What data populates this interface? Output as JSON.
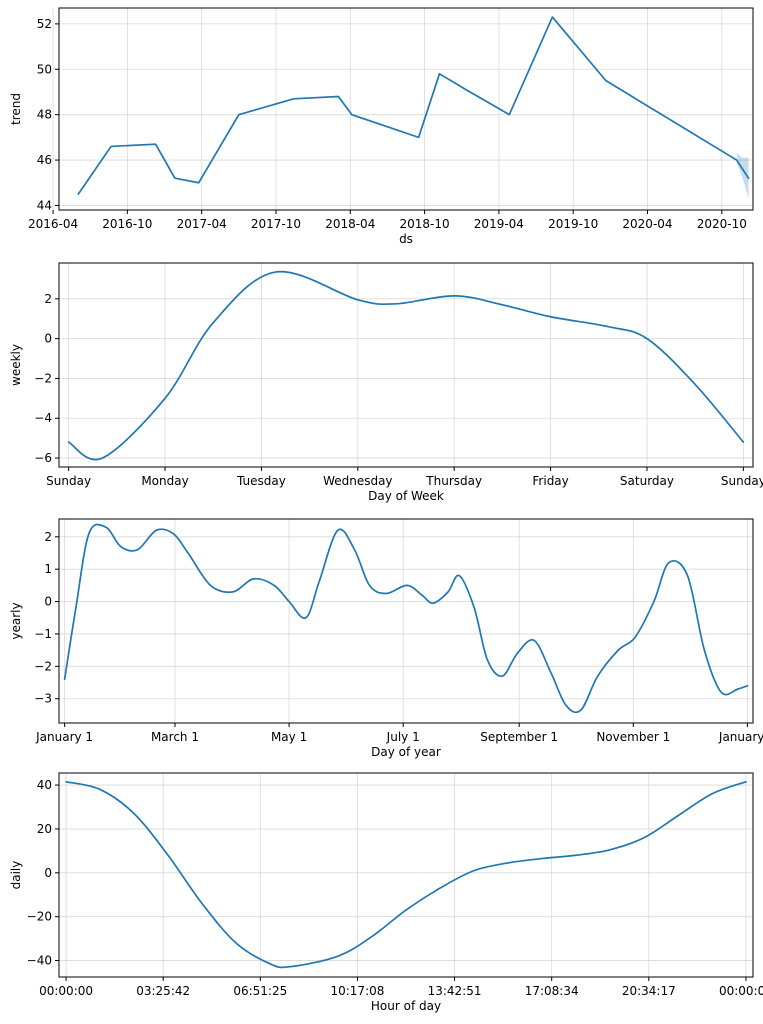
{
  "colors": {
    "line": "#1f77b4",
    "band": "#1f77b4",
    "grid": "#d9d9d9"
  },
  "chart_data": [
    {
      "type": "line",
      "name": "trend-panel",
      "xlabel": "ds",
      "ylabel": "trend",
      "xlim": [
        2016.29,
        2020.96
      ],
      "ylim": [
        43.8,
        52.7
      ],
      "xticks": [
        {
          "v": 2016.25,
          "label": "2016-04"
        },
        {
          "v": 2016.75,
          "label": "2016-10"
        },
        {
          "v": 2017.25,
          "label": "2017-04"
        },
        {
          "v": 2017.75,
          "label": "2017-10"
        },
        {
          "v": 2018.25,
          "label": "2018-04"
        },
        {
          "v": 2018.75,
          "label": "2018-10"
        },
        {
          "v": 2019.25,
          "label": "2019-04"
        },
        {
          "v": 2019.75,
          "label": "2019-10"
        },
        {
          "v": 2020.25,
          "label": "2020-04"
        },
        {
          "v": 2020.75,
          "label": "2020-10"
        }
      ],
      "yticks": [
        {
          "v": 44,
          "label": "44"
        },
        {
          "v": 46,
          "label": "46"
        },
        {
          "v": 48,
          "label": "48"
        },
        {
          "v": 50,
          "label": "50"
        },
        {
          "v": 52,
          "label": "52"
        }
      ],
      "x": [
        2016.42,
        2016.64,
        2016.94,
        2017.07,
        2017.23,
        2017.5,
        2017.87,
        2018.17,
        2018.26,
        2018.71,
        2018.85,
        2019.03,
        2019.32,
        2019.61,
        2019.97,
        2020.85,
        2020.93
      ],
      "y": [
        44.5,
        46.6,
        46.7,
        45.2,
        45.0,
        48.0,
        48.7,
        48.8,
        48.0,
        47.0,
        49.8,
        49.1,
        48.0,
        52.3,
        49.5,
        46.0,
        45.2
      ],
      "band": {
        "x": [
          2020.85,
          2020.89,
          2020.93
        ],
        "upper": [
          46.3,
          46.1,
          46.1
        ],
        "lower": [
          45.9,
          45.2,
          44.3
        ]
      }
    },
    {
      "type": "line",
      "name": "weekly-panel",
      "xlabel": "Day of Week",
      "ylabel": "weekly",
      "xlim": [
        -0.1,
        7.1
      ],
      "ylim": [
        -6.45,
        3.8
      ],
      "xticks": [
        {
          "v": 0,
          "label": "Sunday"
        },
        {
          "v": 1,
          "label": "Monday"
        },
        {
          "v": 2,
          "label": "Tuesday"
        },
        {
          "v": 3,
          "label": "Wednesday"
        },
        {
          "v": 4,
          "label": "Thursday"
        },
        {
          "v": 5,
          "label": "Friday"
        },
        {
          "v": 6,
          "label": "Saturday"
        },
        {
          "v": 7,
          "label": "Sunday"
        }
      ],
      "yticks": [
        {
          "v": -6,
          "label": "−6"
        },
        {
          "v": -4,
          "label": "−4"
        },
        {
          "v": -2,
          "label": "−2"
        },
        {
          "v": 0,
          "label": "0"
        },
        {
          "v": 2,
          "label": "2"
        }
      ],
      "x": [
        0,
        0.35,
        1,
        1.5,
        2.15,
        3,
        3.4,
        4,
        4.5,
        5,
        5.6,
        6,
        6.5,
        7
      ],
      "y": [
        -5.2,
        -6.0,
        -3.0,
        0.8,
        3.35,
        1.95,
        1.75,
        2.15,
        1.7,
        1.1,
        0.6,
        0.0,
        -2.3,
        -5.2
      ]
    },
    {
      "type": "line",
      "name": "yearly-panel",
      "xlabel": "Day of year",
      "ylabel": "yearly",
      "xlim": [
        -3,
        368
      ],
      "ylim": [
        -3.75,
        2.55
      ],
      "xticks": [
        {
          "v": 0,
          "label": "January 1"
        },
        {
          "v": 59,
          "label": "March 1"
        },
        {
          "v": 120,
          "label": "May 1"
        },
        {
          "v": 181,
          "label": "July 1"
        },
        {
          "v": 243,
          "label": "September 1"
        },
        {
          "v": 304,
          "label": "November 1"
        },
        {
          "v": 365,
          "label": "January 1"
        }
      ],
      "yticks": [
        {
          "v": -3,
          "label": "−3"
        },
        {
          "v": -2,
          "label": "−2"
        },
        {
          "v": -1,
          "label": "−1"
        },
        {
          "v": 0,
          "label": "0"
        },
        {
          "v": 1,
          "label": "1"
        },
        {
          "v": 2,
          "label": "2"
        }
      ],
      "x": [
        0,
        6,
        13,
        22,
        30,
        39,
        49,
        58,
        66,
        78,
        90,
        101,
        112,
        120,
        129,
        136,
        146,
        155,
        163,
        172,
        183,
        191,
        197,
        205,
        211,
        219,
        226,
        234,
        242,
        251,
        260,
        268,
        276,
        285,
        296,
        305,
        315,
        323,
        333,
        342,
        351,
        360,
        365
      ],
      "y": [
        -2.4,
        -0.2,
        2.1,
        2.3,
        1.7,
        1.6,
        2.2,
        2.1,
        1.5,
        0.5,
        0.3,
        0.7,
        0.5,
        0.0,
        -0.5,
        0.6,
        2.2,
        1.6,
        0.5,
        0.25,
        0.5,
        0.2,
        -0.05,
        0.3,
        0.8,
        -0.2,
        -1.8,
        -2.3,
        -1.6,
        -1.2,
        -2.2,
        -3.2,
        -3.35,
        -2.3,
        -1.5,
        -1.1,
        0.0,
        1.2,
        0.8,
        -1.5,
        -2.8,
        -2.7,
        -2.6
      ]
    },
    {
      "type": "line",
      "name": "daily-panel",
      "xlabel": "Hour of day",
      "ylabel": "daily",
      "xlim": [
        -0.0104,
        1.0104
      ],
      "ylim": [
        -47.5,
        45.5
      ],
      "xticks": [
        {
          "v": 0,
          "label": "00:00:00"
        },
        {
          "v": 0.142857,
          "label": "03:25:42"
        },
        {
          "v": 0.285714,
          "label": "06:51:25"
        },
        {
          "v": 0.428571,
          "label": "10:17:08"
        },
        {
          "v": 0.571429,
          "label": "13:42:51"
        },
        {
          "v": 0.714286,
          "label": "17:08:34"
        },
        {
          "v": 0.857143,
          "label": "20:34:17"
        },
        {
          "v": 1.0,
          "label": "00:00:00"
        }
      ],
      "yticks": [
        {
          "v": -40,
          "label": "−40"
        },
        {
          "v": -20,
          "label": "−20"
        },
        {
          "v": 0,
          "label": "0"
        },
        {
          "v": 20,
          "label": "20"
        },
        {
          "v": 40,
          "label": "40"
        }
      ],
      "x": [
        0,
        0.05,
        0.1,
        0.15,
        0.2,
        0.25,
        0.3,
        0.33,
        0.4,
        0.45,
        0.5,
        0.55,
        0.6,
        0.65,
        0.7,
        0.75,
        0.8,
        0.85,
        0.9,
        0.95,
        1.0
      ],
      "y": [
        41.5,
        38.0,
        27.0,
        8.0,
        -14.0,
        -32.0,
        -41.5,
        -42.8,
        -38.0,
        -29.0,
        -17.0,
        -7.0,
        1.0,
        4.5,
        6.5,
        8.0,
        10.5,
        16.0,
        26.0,
        36.0,
        41.5
      ]
    }
  ]
}
